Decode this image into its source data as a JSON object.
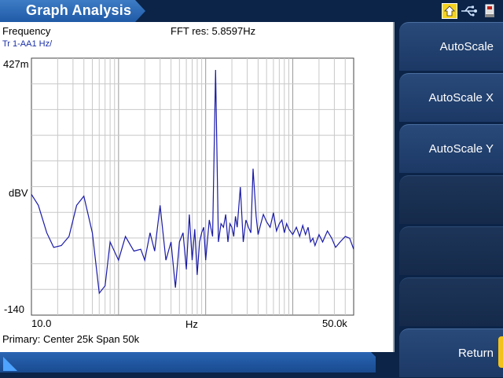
{
  "header": {
    "title": "Graph Analysis",
    "status_icons": [
      "home-up-icon",
      "usb-icon",
      "device-icon"
    ],
    "accent_color": "#f5d21c"
  },
  "plot": {
    "measurement": "Frequency",
    "trace_label": "Tr 1-AA1 Hz/",
    "fft_resolution": "FFT res: 5.8597Hz",
    "y_top_label": "427m",
    "y_mid_label": "dBV",
    "y_bottom_label": "-140",
    "x_left_label": "10.0",
    "x_mid_label": "Hz",
    "x_right_label": "50.0k",
    "footer": "Primary: Center 25k Span 50k",
    "trace_color": "#1a1aa8"
  },
  "chart_data": {
    "type": "line",
    "x_scale": "log",
    "x_range_hz": [
      10,
      50000
    ],
    "y_range_dbv": [
      -140,
      0.427
    ],
    "xlabel": "Hz",
    "ylabel": "dBV",
    "grid": true,
    "series": [
      {
        "x": [
          10,
          12,
          15,
          18,
          22,
          27,
          33,
          40,
          50,
          60,
          70,
          80,
          100,
          120,
          150,
          180,
          200,
          230,
          260,
          300,
          350,
          400,
          450,
          500,
          550,
          600,
          650,
          700,
          750,
          800,
          850,
          900,
          950,
          1000,
          1100,
          1200,
          1300,
          1400,
          1500,
          1600,
          1700,
          1800,
          1900,
          2000,
          2100,
          2200,
          2300,
          2500,
          2700,
          2900,
          3000,
          3100,
          3300,
          3500,
          3800,
          4000,
          4300,
          4600,
          5000,
          5500,
          6000,
          6500,
          7000,
          7500,
          8000,
          8500,
          9000,
          10000,
          11000,
          12000,
          13000,
          14000,
          15000,
          16000,
          17000,
          18000,
          20000,
          22000,
          25000,
          28000,
          31000,
          35000,
          40000,
          45000,
          50000
        ],
        "y": [
          -74,
          -80,
          -95,
          -103,
          -102,
          -97,
          -80,
          -75,
          -95,
          -128,
          -124,
          -100,
          -110,
          -97,
          -105,
          -104,
          -110,
          -95,
          -105,
          -80,
          -110,
          -100,
          -125,
          -100,
          -95,
          -115,
          -85,
          -110,
          -93,
          -118,
          -100,
          -95,
          -92,
          -110,
          -88,
          -97,
          -6,
          -100,
          -90,
          -92,
          -85,
          -100,
          -90,
          -92,
          -97,
          -86,
          -92,
          -70,
          -100,
          -88,
          -90,
          -92,
          -95,
          -60,
          -86,
          -96,
          -90,
          -85,
          -89,
          -92,
          -84,
          -94,
          -90,
          -88,
          -95,
          -90,
          -93,
          -96,
          -92,
          -97,
          -91,
          -96,
          -92,
          -100,
          -98,
          -102,
          -96,
          -100,
          -94,
          -98,
          -103,
          -100,
          -97,
          -98,
          -104
        ]
      }
    ]
  },
  "softkeys": [
    {
      "label": "AutoScale"
    },
    {
      "label": "AutoScale X"
    },
    {
      "label": "AutoScale Y"
    },
    {
      "label": ""
    },
    {
      "label": ""
    },
    {
      "label": ""
    },
    {
      "label": "Return"
    }
  ]
}
